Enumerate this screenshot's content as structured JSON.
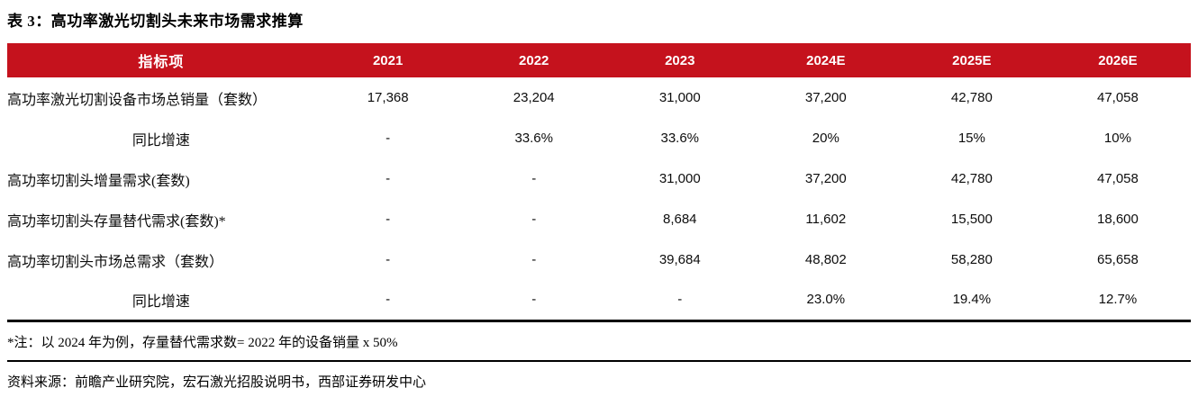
{
  "page": {
    "title": "表 3：高功率激光切割头未来市场需求推算",
    "footnote": "*注：以 2024 年为例，存量替代需求数= 2022 年的设备销量 x 50%",
    "source": "资料来源：前瞻产业研究院，宏石激光招股说明书，西部证券研发中心"
  },
  "colors": {
    "header_bg": "#C5121D",
    "header_text": "#FFFFFF",
    "body_text": "#0D0D0D",
    "rule": "#000000"
  },
  "table": {
    "columns": [
      "指标项",
      "2021",
      "2022",
      "2023",
      "2024E",
      "2025E",
      "2026E"
    ],
    "rows": [
      {
        "label": "高功率激光切割设备市场总销量（套数）",
        "values": [
          "17,368",
          "23,204",
          "31,000",
          "37,200",
          "42,780",
          "47,058"
        ]
      },
      {
        "label": "同比增速",
        "values": [
          "-",
          "33.6%",
          "33.6%",
          "20%",
          "15%",
          "10%"
        ]
      },
      {
        "label": "高功率切割头增量需求(套数)",
        "values": [
          "-",
          "-",
          "31,000",
          "37,200",
          "42,780",
          "47,058"
        ]
      },
      {
        "label": "高功率切割头存量替代需求(套数)*",
        "values": [
          "-",
          "-",
          "8,684",
          "11,602",
          "15,500",
          "18,600"
        ]
      },
      {
        "label": "高功率切割头市场总需求（套数）",
        "values": [
          "-",
          "-",
          "39,684",
          "48,802",
          "58,280",
          "65,658"
        ]
      },
      {
        "label": "同比增速",
        "values": [
          "-",
          "-",
          "-",
          "23.0%",
          "19.4%",
          "12.7%"
        ]
      }
    ]
  }
}
